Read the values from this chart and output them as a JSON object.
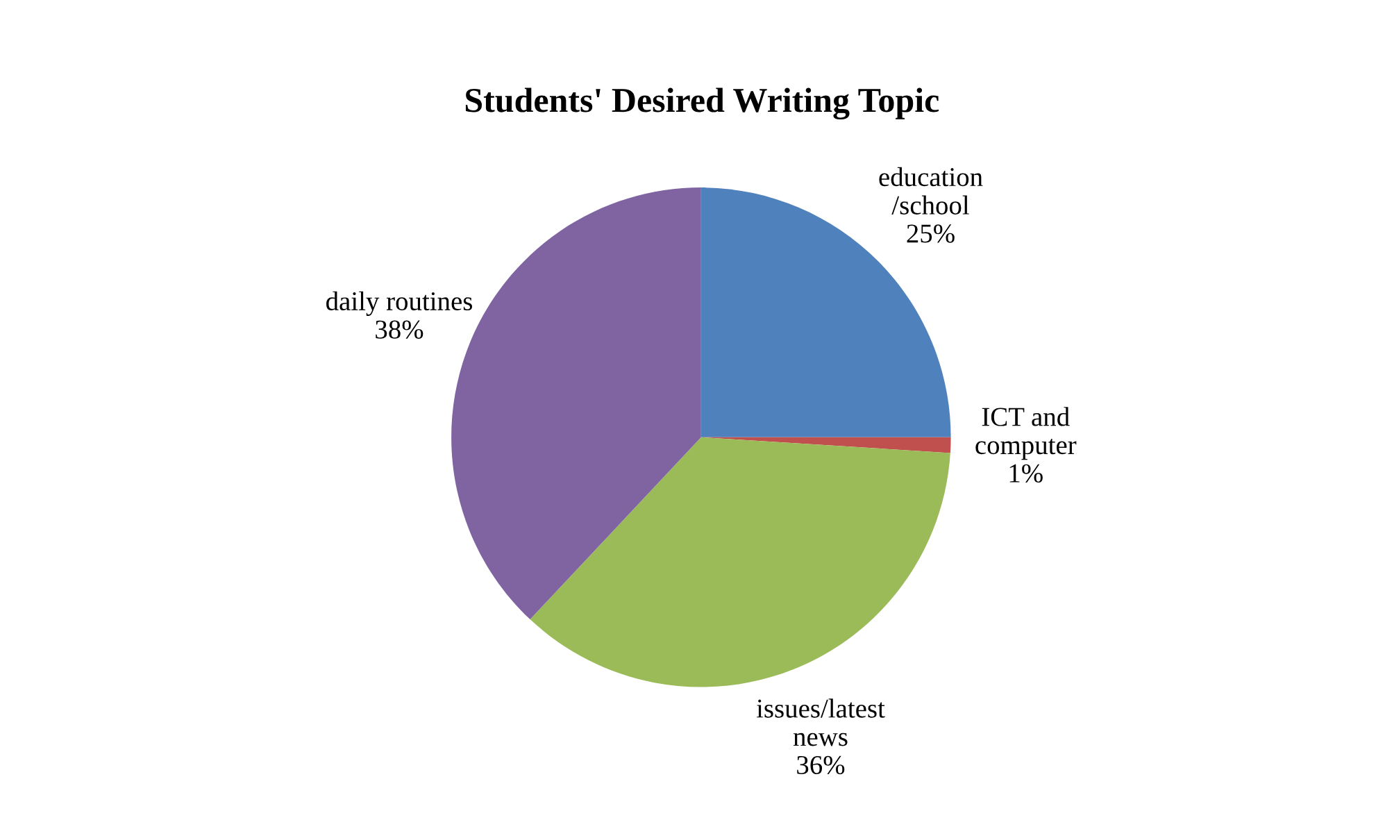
{
  "chart_data": {
    "type": "pie",
    "title": "Students' Desired Writing Topic",
    "categories": [
      "education\n/school",
      "ICT and\ncomputer",
      "issues/latest\nnews",
      "daily routines"
    ],
    "values": [
      25,
      1,
      36,
      38
    ],
    "colors": [
      "#4f81bd",
      "#c0504d",
      "#9bbb59",
      "#8064a2"
    ],
    "value_labels": [
      "25%",
      "1%",
      "36%",
      "38%"
    ],
    "legend": false
  }
}
